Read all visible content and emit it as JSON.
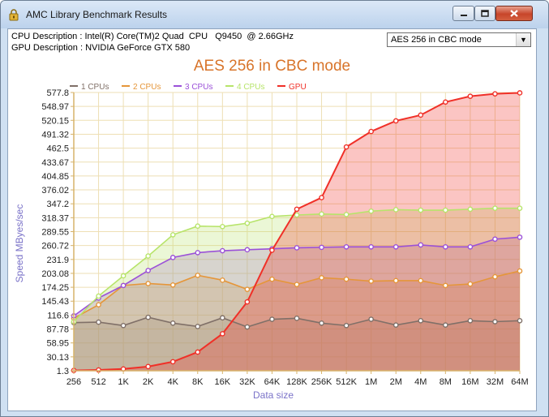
{
  "window": {
    "title": "AMC Library Benchmark Results",
    "icon": "lock-icon"
  },
  "info": {
    "cpu_description": "CPU Description : Intel(R) Core(TM)2 Quad  CPU   Q9450  @ 2.66GHz",
    "gpu_description": "GPU Description : NVIDIA GeForce GTX 580"
  },
  "algorithm_select": {
    "value": "AES 256 in CBC mode"
  },
  "chart_data": {
    "type": "area",
    "title": "AES 256 in CBC mode",
    "xlabel": "Data size",
    "ylabel": "Speed MByes/sec",
    "categories": [
      "256",
      "512",
      "1K",
      "2K",
      "4K",
      "8K",
      "16K",
      "32K",
      "64K",
      "128K",
      "256K",
      "512K",
      "1M",
      "2M",
      "4M",
      "8M",
      "16M",
      "32M",
      "64M"
    ],
    "y_ticks": [
      "1.3",
      "30.13",
      "58.95",
      "87.78",
      "116.6",
      "145.43",
      "174.25",
      "203.08",
      "231.9",
      "260.72",
      "289.55",
      "318.37",
      "347.2",
      "376.02",
      "404.85",
      "433.67",
      "462.5",
      "491.32",
      "520.15",
      "548.97",
      "577.8"
    ],
    "ylim": [
      1.3,
      577.8
    ],
    "grid": true,
    "legend": "top-left",
    "series": [
      {
        "name": "1 CPUs",
        "color": "#807068",
        "values": [
          101,
          102,
          95,
          112,
          100,
          93,
          111,
          92,
          108,
          110,
          100,
          95,
          108,
          96,
          105,
          96,
          105,
          103,
          105
        ]
      },
      {
        "name": "2 CPUs",
        "color": "#e5963a",
        "values": [
          110,
          138,
          178,
          182,
          179,
          199,
          189,
          170,
          191,
          180,
          194,
          191,
          187,
          188,
          188,
          178,
          181,
          196,
          208
        ]
      },
      {
        "name": "3 CPUs",
        "color": "#9b51d8",
        "values": [
          115,
          152,
          178,
          209,
          236,
          246,
          250,
          252,
          254,
          256,
          257,
          258,
          258,
          258,
          262,
          258,
          258,
          274,
          278
        ]
      },
      {
        "name": "4 CPUs",
        "color": "#b7e46a",
        "values": [
          103,
          156,
          198,
          239,
          283,
          301,
          300,
          307,
          321,
          324,
          326,
          325,
          332,
          335,
          334,
          334,
          336,
          338,
          338
        ]
      },
      {
        "name": "GPU",
        "color": "#f03028",
        "values": [
          2,
          3,
          5,
          10,
          20,
          40,
          78,
          144,
          251,
          336,
          360,
          465,
          497,
          519,
          531,
          558,
          570,
          575,
          577
        ]
      }
    ]
  }
}
